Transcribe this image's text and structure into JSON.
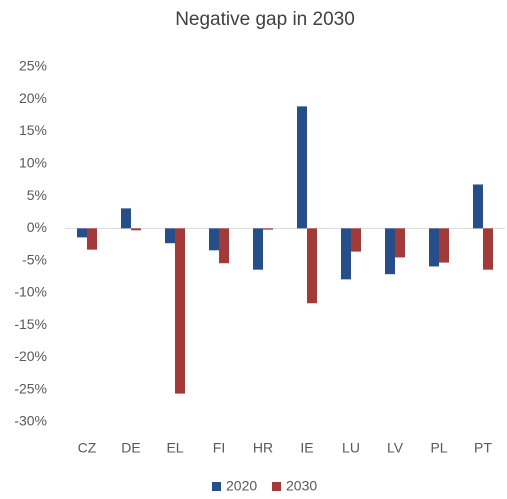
{
  "chart_data": {
    "type": "bar",
    "title": "Negative gap in 2030",
    "categories": [
      "CZ",
      "DE",
      "EL",
      "FI",
      "HR",
      "IE",
      "LU",
      "LV",
      "PL",
      "PT"
    ],
    "series": [
      {
        "name": "2020",
        "color": "#264f8a",
        "values": [
          -1.4,
          3.1,
          -2.3,
          -3.4,
          -6.4,
          18.9,
          -7.9,
          -7.1,
          -5.9,
          6.8
        ]
      },
      {
        "name": "2030",
        "color": "#a33a3a",
        "values": [
          -3.3,
          -0.3,
          -25.6,
          -5.4,
          -0.2,
          -11.6,
          -3.6,
          -4.5,
          -5.3,
          -6.4
        ]
      }
    ],
    "ylim": [
      -30,
      25
    ],
    "yticks": [
      {
        "value": -30,
        "label": "-30%"
      },
      {
        "value": -25,
        "label": "-25%"
      },
      {
        "value": -20,
        "label": "-20%"
      },
      {
        "value": -15,
        "label": "-15%"
      },
      {
        "value": -10,
        "label": "-10%"
      },
      {
        "value": -5,
        "label": "-5%"
      },
      {
        "value": 0,
        "label": "0%"
      },
      {
        "value": 5,
        "label": "5%"
      },
      {
        "value": 10,
        "label": "10%"
      },
      {
        "value": 15,
        "label": "15%"
      },
      {
        "value": 20,
        "label": "20%"
      },
      {
        "value": 25,
        "label": "25%"
      }
    ],
    "grid": false,
    "legend": "bottom"
  }
}
